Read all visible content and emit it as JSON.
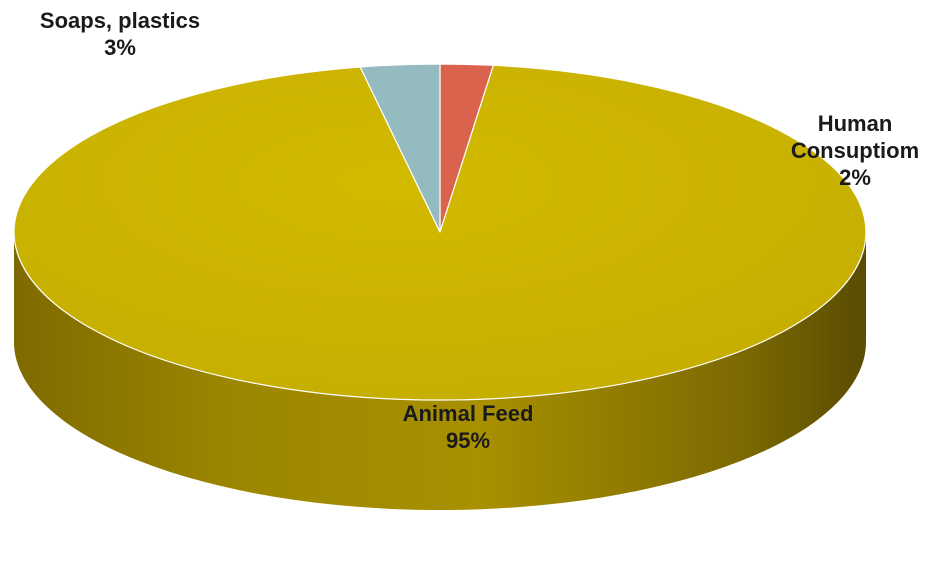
{
  "chart_data": {
    "type": "pie",
    "title": "",
    "slices": [
      {
        "name": "Human Consuptiom",
        "value": 2,
        "value_label": "2%",
        "color": "#d9634c"
      },
      {
        "name": "Animal Feed",
        "value": 95,
        "value_label": "95%",
        "color": "#c9b200"
      },
      {
        "name": "Soaps, plastics",
        "value": 3,
        "value_label": "3%",
        "color": "#94bcc0"
      }
    ],
    "style": "3d-tilted",
    "legend": "none"
  }
}
